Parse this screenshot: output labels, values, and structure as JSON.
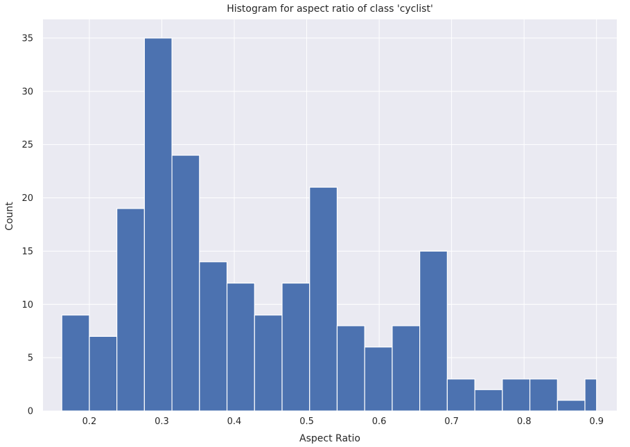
{
  "chart_data": {
    "type": "histogram",
    "title": "Histogram for aspect ratio of class 'cyclist'",
    "xlabel": "Aspect Ratio",
    "ylabel": "Count",
    "xlim": [
      0.136,
      0.928
    ],
    "ylim": [
      0,
      36.75
    ],
    "xticks": [
      0.2,
      0.3,
      0.4,
      0.5,
      0.6,
      0.7,
      0.8,
      0.9
    ],
    "xtick_labels": [
      "0.2",
      "0.3",
      "0.4",
      "0.5",
      "0.6",
      "0.7",
      "0.8",
      "0.9"
    ],
    "yticks": [
      0,
      5,
      10,
      15,
      20,
      25,
      30,
      35
    ],
    "ytick_labels": [
      "0",
      "5",
      "10",
      "15",
      "20",
      "25",
      "30",
      "35"
    ],
    "bin_edges": [
      0.162,
      0.2,
      0.238,
      0.276,
      0.314,
      0.352,
      0.39,
      0.428,
      0.466,
      0.504,
      0.542,
      0.58,
      0.618,
      0.656,
      0.694,
      0.732,
      0.77,
      0.808,
      0.846,
      0.884,
      0.9
    ],
    "counts": [
      9,
      7,
      19,
      35,
      24,
      14,
      12,
      9,
      12,
      21,
      8,
      6,
      8,
      15,
      3,
      2,
      3,
      3,
      1,
      3
    ],
    "bar_color": "#4c72b0",
    "grid": true,
    "background_color": "#eaeaf2",
    "grid_color": "#ffffff"
  }
}
